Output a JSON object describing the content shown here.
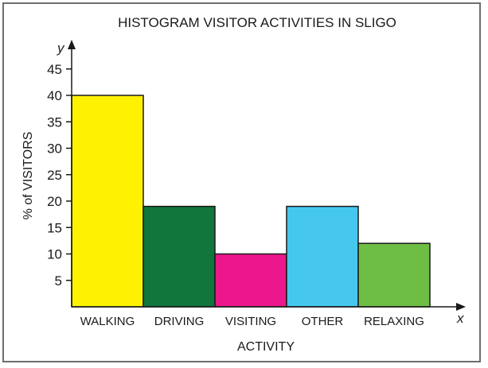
{
  "chart_data": {
    "type": "bar",
    "title": "HISTOGRAM VISITOR ACTIVITIES IN SLIGO",
    "xlabel": "ACTIVITY",
    "ylabel": "% of VISITORS",
    "x_axis_letter": "x",
    "y_axis_letter": "y",
    "categories": [
      "WALKING",
      "DRIVING",
      "VISITING",
      "OTHER",
      "RELAXING"
    ],
    "values": [
      40,
      19,
      10,
      19,
      12
    ],
    "colors": [
      "#fff200",
      "#10763c",
      "#ec178c",
      "#46c8ee",
      "#6ebe45"
    ],
    "yticks": [
      5,
      10,
      15,
      20,
      25,
      30,
      35,
      40,
      45
    ],
    "ylim": [
      0,
      48
    ],
    "grid": false,
    "legend": "none"
  }
}
